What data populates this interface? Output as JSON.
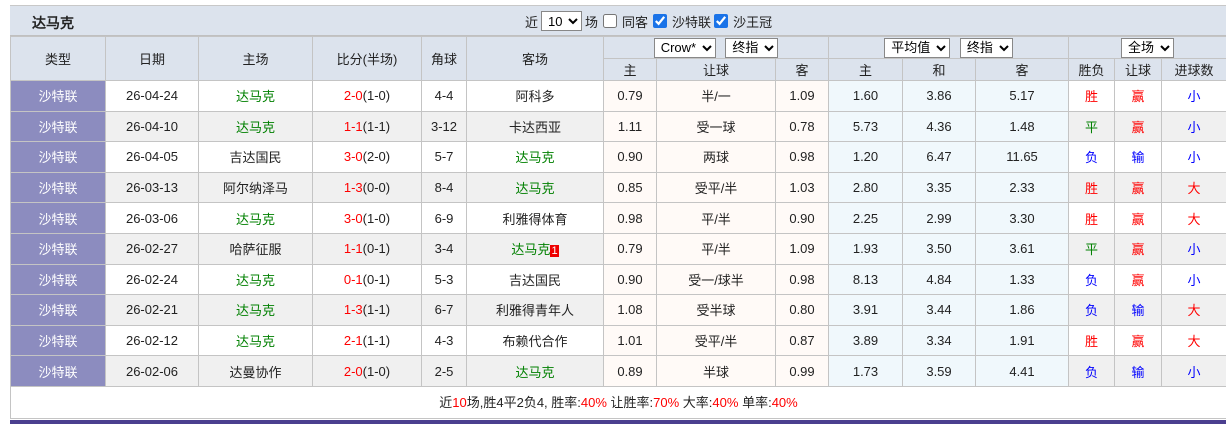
{
  "title": "达马克",
  "filter": {
    "prefix": "近",
    "count": "10",
    "suffix": "场",
    "same_guest": "同客",
    "same_guest_checked": false,
    "league1": "沙特联",
    "league1_checked": true,
    "league2": "沙王冠",
    "league2_checked": true
  },
  "headers": {
    "type": "类型",
    "date": "日期",
    "home": "主场",
    "score": "比分(半场)",
    "corner": "角球",
    "away": "客场",
    "company": "Crow*",
    "odds1_kind": "终指",
    "avg": "平均值",
    "odds2_kind": "终指",
    "period": "全场",
    "h_home": "主",
    "h_hcp": "让球",
    "h_away": "客",
    "a_home": "主",
    "a_draw": "和",
    "a_away": "客",
    "wl": "胜负",
    "hcp_res": "让球",
    "goals": "进球数"
  },
  "colors": {
    "type_bg": "#8c8cbf",
    "team": "#008000",
    "win": "#ff0000",
    "draw": "#008000",
    "lose": "#0000ff"
  },
  "rows": [
    {
      "type": "沙特联",
      "date": "26-04-24",
      "home": "达马克",
      "home_hl": true,
      "ft": "2-0",
      "ht": "(1-0)",
      "corner": "4-4",
      "away": "阿科多",
      "away_hl": false,
      "h1": "0.79",
      "hcp": "半/一",
      "h2": "1.09",
      "a1": "1.60",
      "ad": "3.86",
      "a2": "5.17",
      "wl": "胜",
      "hr": "赢",
      "g": "小"
    },
    {
      "type": "沙特联",
      "date": "26-04-10",
      "home": "达马克",
      "home_hl": true,
      "ft": "1-1",
      "ht": "(1-1)",
      "corner": "3-12",
      "away": "卡达西亚",
      "away_hl": false,
      "h1": "1.11",
      "hcp": "受一球",
      "h2": "0.78",
      "a1": "5.73",
      "ad": "4.36",
      "a2": "1.48",
      "wl": "平",
      "hr": "赢",
      "g": "小"
    },
    {
      "type": "沙特联",
      "date": "26-04-05",
      "home": "吉达国民",
      "home_hl": false,
      "ft": "3-0",
      "ht": "(2-0)",
      "corner": "5-7",
      "away": "达马克",
      "away_hl": true,
      "h1": "0.90",
      "hcp": "两球",
      "h2": "0.98",
      "a1": "1.20",
      "ad": "6.47",
      "a2": "11.65",
      "wl": "负",
      "hr": "输",
      "g": "小"
    },
    {
      "type": "沙特联",
      "date": "26-03-13",
      "home": "阿尔纳泽马",
      "home_hl": false,
      "ft": "1-3",
      "ht": "(0-0)",
      "corner": "8-4",
      "away": "达马克",
      "away_hl": true,
      "h1": "0.85",
      "hcp": "受平/半",
      "h2": "1.03",
      "a1": "2.80",
      "ad": "3.35",
      "a2": "2.33",
      "wl": "胜",
      "hr": "赢",
      "g": "大"
    },
    {
      "type": "沙特联",
      "date": "26-03-06",
      "home": "达马克",
      "home_hl": true,
      "ft": "3-0",
      "ht": "(1-0)",
      "corner": "6-9",
      "away": "利雅得体育",
      "away_hl": false,
      "h1": "0.98",
      "hcp": "平/半",
      "h2": "0.90",
      "a1": "2.25",
      "ad": "2.99",
      "a2": "3.30",
      "wl": "胜",
      "hr": "赢",
      "g": "大"
    },
    {
      "type": "沙特联",
      "date": "26-02-27",
      "home": "哈萨征服",
      "home_hl": false,
      "ft": "1-1",
      "ht": "(0-1)",
      "corner": "3-4",
      "away": "达马克",
      "away_hl": true,
      "away_badge": "1",
      "h1": "0.79",
      "hcp": "平/半",
      "h2": "1.09",
      "a1": "1.93",
      "ad": "3.50",
      "a2": "3.61",
      "wl": "平",
      "hr": "赢",
      "g": "小"
    },
    {
      "type": "沙特联",
      "date": "26-02-24",
      "home": "达马克",
      "home_hl": true,
      "ft": "0-1",
      "ht": "(0-1)",
      "corner": "5-3",
      "away": "吉达国民",
      "away_hl": false,
      "h1": "0.90",
      "hcp": "受一/球半",
      "h2": "0.98",
      "a1": "8.13",
      "ad": "4.84",
      "a2": "1.33",
      "wl": "负",
      "hr": "赢",
      "g": "小"
    },
    {
      "type": "沙特联",
      "date": "26-02-21",
      "home": "达马克",
      "home_hl": true,
      "ft": "1-3",
      "ht": "(1-1)",
      "corner": "6-7",
      "away": "利雅得青年人",
      "away_hl": false,
      "h1": "1.08",
      "hcp": "受半球",
      "h2": "0.80",
      "a1": "3.91",
      "ad": "3.44",
      "a2": "1.86",
      "wl": "负",
      "hr": "输",
      "g": "大"
    },
    {
      "type": "沙特联",
      "date": "26-02-12",
      "home": "达马克",
      "home_hl": true,
      "ft": "2-1",
      "ht": "(1-1)",
      "corner": "4-3",
      "away": "布赖代合作",
      "away_hl": false,
      "h1": "1.01",
      "hcp": "受平/半",
      "h2": "0.87",
      "a1": "3.89",
      "ad": "3.34",
      "a2": "1.91",
      "wl": "胜",
      "hr": "赢",
      "g": "大"
    },
    {
      "type": "沙特联",
      "date": "26-02-06",
      "home": "达曼协作",
      "home_hl": false,
      "ft": "2-0",
      "ht": "(1-0)",
      "corner": "2-5",
      "away": "达马克",
      "away_hl": true,
      "h1": "0.89",
      "hcp": "半球",
      "h2": "0.99",
      "a1": "1.73",
      "ad": "3.59",
      "a2": "4.41",
      "wl": "负",
      "hr": "输",
      "g": "小"
    }
  ],
  "summary": {
    "p1": "近",
    "n": "10",
    "p2": "场,胜4平2负4, 胜率:",
    "win_rate": "40%",
    "p3": " 让胜率:",
    "hcp_rate": "70%",
    "p4": " 大率:",
    "big_rate": "40%",
    "p5": " 单率:",
    "odd_rate": "40%"
  }
}
